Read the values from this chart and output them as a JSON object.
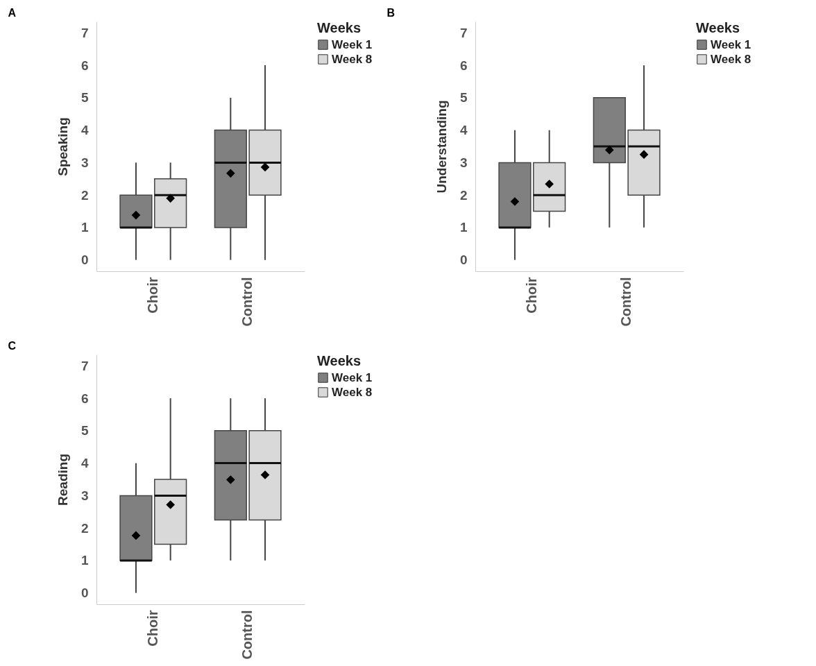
{
  "chart_data": [
    {
      "type": "box",
      "title": "A",
      "ylabel": "Speaking",
      "legend_title": "Weeks",
      "categories": [
        "Choir",
        "Control"
      ],
      "ylim": [
        -0.35,
        7.35
      ],
      "yticks": [
        0,
        1,
        2,
        3,
        4,
        5,
        6,
        7
      ],
      "grid": false,
      "legend": "right",
      "marker": "diamond",
      "series": [
        {
          "name": "Week 1",
          "color": "#808080",
          "boxes": [
            {
              "low": 0,
              "q1": 1,
              "median": 1,
              "q3": 2,
              "high": 3,
              "mean": 1.38
            },
            {
              "low": 0,
              "q1": 1,
              "median": 3,
              "q3": 4,
              "high": 5,
              "mean": 2.67
            }
          ]
        },
        {
          "name": "Week 8",
          "color": "#d9d9d9",
          "boxes": [
            {
              "low": 0,
              "q1": 1,
              "median": 2,
              "q3": 2.5,
              "high": 3,
              "mean": 1.9
            },
            {
              "low": 0,
              "q1": 2,
              "median": 3,
              "q3": 4,
              "high": 6,
              "mean": 2.86
            }
          ]
        }
      ]
    },
    {
      "type": "box",
      "title": "B",
      "ylabel": "Understanding",
      "legend_title": "Weeks",
      "categories": [
        "Choir",
        "Control"
      ],
      "ylim": [
        -0.35,
        7.35
      ],
      "yticks": [
        0,
        1,
        2,
        3,
        4,
        5,
        6,
        7
      ],
      "grid": false,
      "legend": "right",
      "marker": "diamond",
      "series": [
        {
          "name": "Week 1",
          "color": "#808080",
          "boxes": [
            {
              "low": 0,
              "q1": 1,
              "median": 1,
              "q3": 3,
              "high": 4,
              "mean": 1.8
            },
            {
              "low": 1,
              "q1": 3,
              "median": 3.5,
              "q3": 5,
              "high": 5,
              "mean": 3.39
            }
          ]
        },
        {
          "name": "Week 8",
          "color": "#d9d9d9",
          "boxes": [
            {
              "low": 1,
              "q1": 1.5,
              "median": 2,
              "q3": 3,
              "high": 4,
              "mean": 2.34
            },
            {
              "low": 1,
              "q1": 2,
              "median": 3.5,
              "q3": 4,
              "high": 6,
              "mean": 3.25
            }
          ]
        }
      ]
    },
    {
      "type": "box",
      "title": "C",
      "ylabel": "Reading",
      "legend_title": "Weeks",
      "categories": [
        "Choir",
        "Control"
      ],
      "ylim": [
        -0.35,
        7.35
      ],
      "yticks": [
        0,
        1,
        2,
        3,
        4,
        5,
        6,
        7
      ],
      "grid": false,
      "legend": "right",
      "marker": "diamond",
      "series": [
        {
          "name": "Week 1",
          "color": "#808080",
          "boxes": [
            {
              "low": 0,
              "q1": 1,
              "median": 1,
              "q3": 3,
              "high": 4,
              "mean": 1.77
            },
            {
              "low": 1,
              "q1": 2.25,
              "median": 4,
              "q3": 5,
              "high": 6,
              "mean": 3.49
            }
          ]
        },
        {
          "name": "Week 8",
          "color": "#d9d9d9",
          "boxes": [
            {
              "low": 1,
              "q1": 1.5,
              "median": 3,
              "q3": 3.5,
              "high": 6,
              "mean": 2.72
            },
            {
              "low": 1,
              "q1": 2.25,
              "median": 4,
              "q3": 5,
              "high": 6,
              "mean": 3.64
            }
          ]
        }
      ]
    }
  ]
}
